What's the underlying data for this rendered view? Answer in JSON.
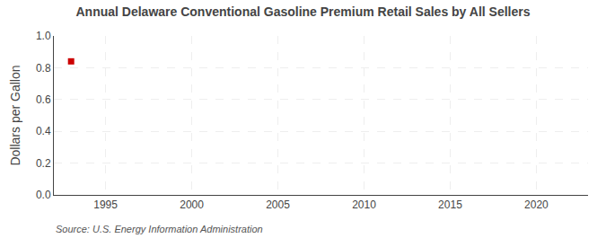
{
  "chart_data": {
    "type": "scatter",
    "title": "Annual Delaware Conventional Gasoline Premium Retail Sales by All Sellers",
    "ylabel": "Dollars per Gallon",
    "annotations": [
      "Source: U.S. Energy Information Administration"
    ],
    "x": [
      1993
    ],
    "values": [
      0.84
    ],
    "color": "#cc0000",
    "marker": "square",
    "xlim": [
      1992,
      2023
    ],
    "ylim": [
      0.0,
      1.0
    ],
    "xticks": [
      1995,
      2000,
      2005,
      2010,
      2015,
      2020
    ],
    "yticks": [
      {
        "value": 0.0,
        "label": "0.0"
      },
      0.2,
      0.4,
      0.6,
      0.8,
      {
        "value": 1.0,
        "label": "1.0"
      }
    ],
    "grid": true
  }
}
